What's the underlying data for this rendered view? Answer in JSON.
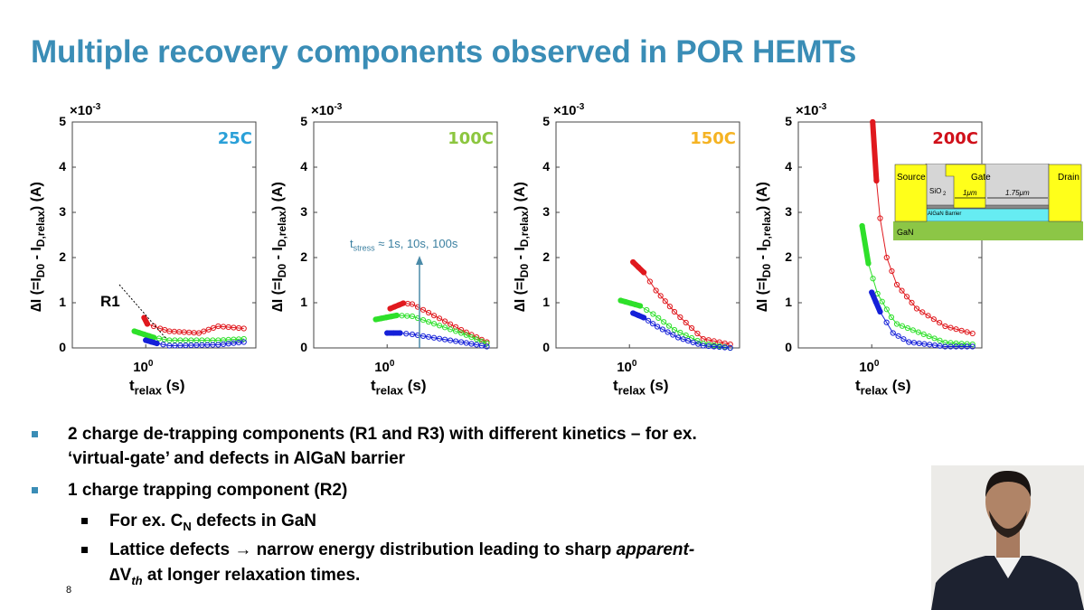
{
  "slide": {
    "title": "Multiple recovery components observed in POR HEMTs",
    "page_number": "8",
    "accent_color": "#3a8db6"
  },
  "bullets": [
    {
      "level": 1,
      "text": "2 charge de-trapping components (R1 and R3) with different kinetics – for ex."
    },
    {
      "level": 1,
      "text": "‘virtual-gate’ and defects in AlGaN barrier"
    },
    {
      "level": 1,
      "text": "1 charge trapping component (R2)"
    },
    {
      "level": 2,
      "text_before": "For ex. C",
      "sub": "N",
      "text_after": " defects in GaN"
    },
    {
      "level": 2,
      "text_before": "Lattice defects ",
      "arrow": "→",
      "text_mid": " narrow energy distribution leading to sharp ",
      "italic": "apparent-"
    },
    {
      "level": 2,
      "delta": "∆V",
      "sub": "th",
      "text_after": " at longer relaxation times."
    }
  ],
  "annotations": {
    "r1_label": "R1",
    "tstress_t": "t",
    "tstress_sub": "stress",
    "tstress_rest": " ≈ 1s, 10s, 100s",
    "inset": {
      "source": "Source",
      "gate": "Gate",
      "drain": "Drain",
      "sio2": "SiO",
      "sio2_sub": "2",
      "gate_len": "1μm",
      "gd_len": "1.75μm",
      "barrier": "AlGaN Barrier",
      "gan": "GaN"
    }
  },
  "chart_data": [
    {
      "type": "scatter",
      "title": "25C",
      "title_color": "#2aa0d8",
      "xscale": "log",
      "xlim": [
        0.1,
        31.6
      ],
      "ylim": [
        0,
        5
      ],
      "y_multiplier": [
        "×10",
        "-3"
      ],
      "yticks": [
        "0",
        "1",
        "2",
        "3",
        "4",
        "5"
      ],
      "xticks": [
        [
          "10",
          "0"
        ]
      ],
      "xlabel": [
        "t",
        "relax",
        " (s)"
      ],
      "ylabel": [
        "∆I (=I",
        "D0",
        " - I",
        "D,relax",
        ") (A)"
      ],
      "series": [
        {
          "color": "#e0191e",
          "points": [
            [
              0.95,
              0.67
            ],
            [
              1.05,
              0.53
            ],
            [
              1.57,
              0.43
            ],
            [
              2.1,
              0.37
            ],
            [
              5.3,
              0.33
            ],
            [
              9.7,
              0.48
            ],
            [
              21.7,
              0.43
            ]
          ]
        },
        {
          "color": "#2ee02a",
          "points": [
            [
              0.7,
              0.37
            ],
            [
              1.29,
              0.23
            ],
            [
              2.1,
              0.17
            ],
            [
              9.7,
              0.17
            ],
            [
              21.7,
              0.2
            ]
          ]
        },
        {
          "color": "#1520d8",
          "points": [
            [
              1.0,
              0.17
            ],
            [
              1.42,
              0.1
            ],
            [
              2.1,
              0.05
            ],
            [
              9.7,
              0.07
            ],
            [
              21.7,
              0.13
            ]
          ]
        }
      ]
    },
    {
      "type": "scatter",
      "title": "100C",
      "title_color": "#8cc63f",
      "xscale": "log",
      "xlim": [
        0.1,
        31.6
      ],
      "ylim": [
        0,
        5
      ],
      "y_multiplier": [
        "×10",
        "-3"
      ],
      "yticks": [
        "0",
        "1",
        "2",
        "3",
        "4",
        "5"
      ],
      "xticks": [
        [
          "10",
          "0"
        ]
      ],
      "xlabel": [
        "t",
        "relax",
        " (s)"
      ],
      "ylabel": [
        "∆I (=I",
        "D0",
        " - I",
        "D,relax",
        ") (A)"
      ],
      "series": [
        {
          "color": "#e0191e",
          "points": [
            [
              1.1,
              0.87
            ],
            [
              1.66,
              0.99
            ],
            [
              2.2,
              0.97
            ],
            [
              10.2,
              0.4
            ],
            [
              22.8,
              0.13
            ]
          ]
        },
        {
          "color": "#2ee02a",
          "points": [
            [
              0.7,
              0.63
            ],
            [
              1.35,
              0.72
            ],
            [
              2.2,
              0.7
            ],
            [
              10.2,
              0.33
            ],
            [
              22.8,
              0.1
            ]
          ]
        },
        {
          "color": "#1520d8",
          "points": [
            [
              1.0,
              0.33
            ],
            [
              1.5,
              0.33
            ],
            [
              2.2,
              0.3
            ],
            [
              10.2,
              0.13
            ],
            [
              22.8,
              0.03
            ]
          ]
        }
      ]
    },
    {
      "type": "scatter",
      "title": "150C",
      "title_color": "#f5b323",
      "xscale": "log",
      "xlim": [
        0.1,
        31.6
      ],
      "ylim": [
        0,
        5
      ],
      "y_multiplier": [
        "×10",
        "-3"
      ],
      "yticks": [
        "0",
        "1",
        "2",
        "3",
        "4",
        "5"
      ],
      "xticks": [
        [
          "10",
          "0"
        ]
      ],
      "xlabel": [
        "t",
        "relax",
        " (s)"
      ],
      "ylabel": [
        "∆I (=I",
        "D0",
        " - I",
        "D,relax",
        ") (A)"
      ],
      "series": [
        {
          "color": "#e0191e",
          "points": [
            [
              1.12,
              1.9
            ],
            [
              1.57,
              1.67
            ],
            [
              2.3,
              1.27
            ],
            [
              4.1,
              0.8
            ],
            [
              10.1,
              0.2
            ],
            [
              23.6,
              0.08
            ]
          ]
        },
        {
          "color": "#2ee02a",
          "points": [
            [
              0.76,
              1.05
            ],
            [
              1.4,
              0.93
            ],
            [
              2.1,
              0.75
            ],
            [
              4.1,
              0.4
            ],
            [
              10.1,
              0.1
            ],
            [
              23.6,
              0.0
            ]
          ]
        },
        {
          "color": "#1520d8",
          "points": [
            [
              1.12,
              0.77
            ],
            [
              1.57,
              0.67
            ],
            [
              2.4,
              0.47
            ],
            [
              4.6,
              0.23
            ],
            [
              10.1,
              0.05
            ],
            [
              23.6,
              0.0
            ]
          ]
        }
      ]
    },
    {
      "type": "scatter",
      "title": "200C",
      "title_color": "#d0101a",
      "xscale": "log",
      "xlim": [
        0.1,
        31.6
      ],
      "ylim": [
        0,
        5
      ],
      "y_multiplier": [
        "×10",
        "-3"
      ],
      "yticks": [
        "0",
        "1",
        "2",
        "3",
        "4",
        "5"
      ],
      "xticks": [
        [
          "10",
          "0"
        ]
      ],
      "xlabel": [
        "t",
        "relax",
        " (s)"
      ],
      "ylabel": [
        "∆I (=I",
        "D0",
        " - I",
        "D,relax",
        ") (A)"
      ],
      "series": [
        {
          "color": "#e0191e",
          "points": [
            [
              1.03,
              5.0
            ],
            [
              1.16,
              3.7
            ],
            [
              1.3,
              2.87
            ],
            [
              1.6,
              2.0
            ],
            [
              2.2,
              1.4
            ],
            [
              4.1,
              0.87
            ],
            [
              10,
              0.48
            ],
            [
              23.6,
              0.32
            ]
          ]
        },
        {
          "color": "#2ee02a",
          "points": [
            [
              0.74,
              2.7
            ],
            [
              0.9,
              1.87
            ],
            [
              1.2,
              1.2
            ],
            [
              1.85,
              0.68
            ],
            [
              2.2,
              0.53
            ],
            [
              10,
              0.12
            ],
            [
              23.6,
              0.08
            ]
          ]
        },
        {
          "color": "#1520d8",
          "points": [
            [
              1.0,
              1.23
            ],
            [
              1.3,
              0.8
            ],
            [
              1.95,
              0.33
            ],
            [
              3.2,
              0.13
            ],
            [
              10,
              0.03
            ],
            [
              23.6,
              0.03
            ]
          ]
        }
      ]
    }
  ]
}
